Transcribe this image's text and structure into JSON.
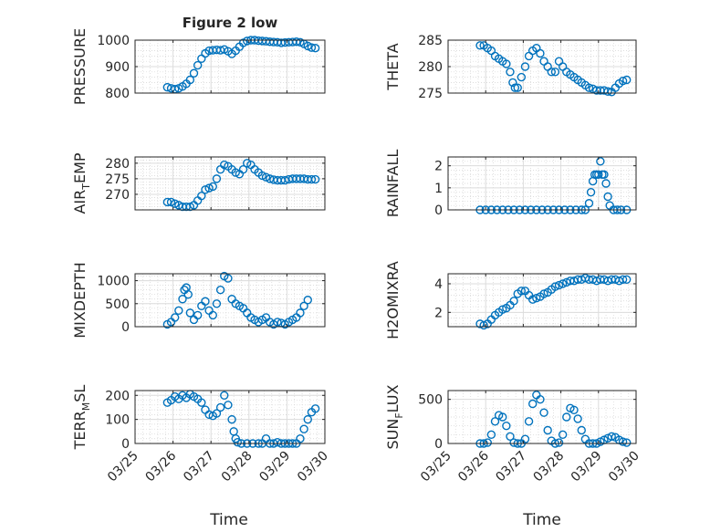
{
  "figure": {
    "title": "Figure 2 low",
    "xlabel": "Time",
    "xticklabels": [
      "03/25",
      "03/26",
      "03/27",
      "03/28",
      "03/29",
      "03/30"
    ],
    "marker_color": "#0072BD"
  },
  "chart_data": [
    {
      "type": "scatter",
      "marker": "circle-open",
      "ylabel": "PRESSURE",
      "ylim": [
        800,
        1000
      ],
      "yticks": [
        800,
        900,
        1000
      ],
      "grid": true,
      "minor_grid": true,
      "xlim": [
        "03/25",
        "03/30"
      ],
      "points": [
        [
          0.85,
          822
        ],
        [
          0.95,
          818
        ],
        [
          1.05,
          815
        ],
        [
          1.15,
          818
        ],
        [
          1.25,
          825
        ],
        [
          1.35,
          835
        ],
        [
          1.45,
          850
        ],
        [
          1.55,
          875
        ],
        [
          1.65,
          905
        ],
        [
          1.75,
          930
        ],
        [
          1.85,
          950
        ],
        [
          1.95,
          960
        ],
        [
          2.05,
          962
        ],
        [
          2.15,
          963
        ],
        [
          2.25,
          962
        ],
        [
          2.35,
          965
        ],
        [
          2.45,
          958
        ],
        [
          2.55,
          948
        ],
        [
          2.65,
          960
        ],
        [
          2.75,
          975
        ],
        [
          2.85,
          990
        ],
        [
          2.95,
          997
        ],
        [
          3.05,
          1000
        ],
        [
          3.15,
          1000
        ],
        [
          3.25,
          998
        ],
        [
          3.35,
          997
        ],
        [
          3.45,
          996
        ],
        [
          3.55,
          994
        ],
        [
          3.65,
          993
        ],
        [
          3.75,
          992
        ],
        [
          3.85,
          990
        ],
        [
          3.95,
          991
        ],
        [
          4.05,
          992
        ],
        [
          4.15,
          993
        ],
        [
          4.25,
          994
        ],
        [
          4.35,
          992
        ],
        [
          4.45,
          986
        ],
        [
          4.55,
          978
        ],
        [
          4.65,
          972
        ],
        [
          4.75,
          970
        ]
      ]
    },
    {
      "type": "scatter",
      "marker": "circle-open",
      "ylabel": "THETA",
      "ylim": [
        275,
        285
      ],
      "yticks": [
        275,
        280,
        285
      ],
      "grid": true,
      "minor_grid": true,
      "xlim": [
        "03/25",
        "03/30"
      ],
      "points": [
        [
          0.85,
          284
        ],
        [
          0.95,
          284
        ],
        [
          1.05,
          283.5
        ],
        [
          1.15,
          283
        ],
        [
          1.25,
          282
        ],
        [
          1.35,
          281.5
        ],
        [
          1.45,
          281
        ],
        [
          1.55,
          280.5
        ],
        [
          1.65,
          279
        ],
        [
          1.72,
          277
        ],
        [
          1.78,
          276
        ],
        [
          1.85,
          276
        ],
        [
          1.95,
          278
        ],
        [
          2.05,
          280
        ],
        [
          2.15,
          282
        ],
        [
          2.25,
          283
        ],
        [
          2.35,
          283.5
        ],
        [
          2.45,
          282.5
        ],
        [
          2.55,
          281
        ],
        [
          2.65,
          280
        ],
        [
          2.75,
          279
        ],
        [
          2.85,
          279
        ],
        [
          2.95,
          281
        ],
        [
          3.05,
          280
        ],
        [
          3.15,
          279
        ],
        [
          3.25,
          278.5
        ],
        [
          3.35,
          278
        ],
        [
          3.45,
          277.5
        ],
        [
          3.55,
          277
        ],
        [
          3.65,
          276.5
        ],
        [
          3.75,
          276
        ],
        [
          3.85,
          275.8
        ],
        [
          3.95,
          275.5
        ],
        [
          4.05,
          275.5
        ],
        [
          4.15,
          275.5
        ],
        [
          4.25,
          275.3
        ],
        [
          4.35,
          275.2
        ],
        [
          4.45,
          276
        ],
        [
          4.55,
          276.8
        ],
        [
          4.65,
          277.3
        ],
        [
          4.75,
          277.5
        ]
      ]
    },
    {
      "type": "scatter",
      "marker": "circle-open",
      "ylabel": "AIR_TEMP",
      "ylim": [
        265,
        282
      ],
      "yticks": [
        270,
        275,
        280
      ],
      "grid": true,
      "minor_grid": true,
      "xlim": [
        "03/25",
        "03/30"
      ],
      "points": [
        [
          0.85,
          267.5
        ],
        [
          0.95,
          267.5
        ],
        [
          1.05,
          267
        ],
        [
          1.15,
          266.5
        ],
        [
          1.25,
          266
        ],
        [
          1.35,
          266
        ],
        [
          1.45,
          266
        ],
        [
          1.55,
          266.5
        ],
        [
          1.65,
          268
        ],
        [
          1.75,
          269.5
        ],
        [
          1.85,
          271.5
        ],
        [
          1.95,
          272
        ],
        [
          2.05,
          272.5
        ],
        [
          2.15,
          275
        ],
        [
          2.25,
          278
        ],
        [
          2.35,
          279.5
        ],
        [
          2.45,
          279
        ],
        [
          2.55,
          278
        ],
        [
          2.65,
          277
        ],
        [
          2.75,
          276.5
        ],
        [
          2.85,
          278
        ],
        [
          2.95,
          280
        ],
        [
          3.05,
          279.5
        ],
        [
          3.15,
          278
        ],
        [
          3.25,
          277
        ],
        [
          3.35,
          276
        ],
        [
          3.45,
          275.5
        ],
        [
          3.55,
          275
        ],
        [
          3.65,
          274.7
        ],
        [
          3.75,
          274.5
        ],
        [
          3.85,
          274.5
        ],
        [
          3.95,
          274.5
        ],
        [
          4.05,
          274.8
        ],
        [
          4.15,
          275
        ],
        [
          4.25,
          275
        ],
        [
          4.35,
          275
        ],
        [
          4.45,
          275
        ],
        [
          4.55,
          274.8
        ],
        [
          4.65,
          274.8
        ],
        [
          4.75,
          274.8
        ]
      ]
    },
    {
      "type": "scatter",
      "marker": "circle-open",
      "ylabel": "RAINFALL",
      "ylim": [
        0,
        2.4
      ],
      "yticks": [
        0,
        1,
        2
      ],
      "grid": true,
      "minor_grid": true,
      "xlim": [
        "03/25",
        "03/30"
      ],
      "points": [
        [
          0.85,
          0
        ],
        [
          1.0,
          0
        ],
        [
          1.15,
          0
        ],
        [
          1.3,
          0
        ],
        [
          1.45,
          0
        ],
        [
          1.6,
          0
        ],
        [
          1.75,
          0
        ],
        [
          1.9,
          0
        ],
        [
          2.05,
          0
        ],
        [
          2.2,
          0
        ],
        [
          2.35,
          0
        ],
        [
          2.5,
          0
        ],
        [
          2.65,
          0
        ],
        [
          2.8,
          0
        ],
        [
          2.95,
          0
        ],
        [
          3.1,
          0
        ],
        [
          3.25,
          0
        ],
        [
          3.4,
          0
        ],
        [
          3.55,
          0
        ],
        [
          3.65,
          0
        ],
        [
          3.75,
          0.3
        ],
        [
          3.8,
          0.8
        ],
        [
          3.85,
          1.3
        ],
        [
          3.9,
          1.6
        ],
        [
          3.95,
          1.6
        ],
        [
          4.0,
          1.6
        ],
        [
          4.05,
          2.2
        ],
        [
          4.1,
          1.6
        ],
        [
          4.15,
          1.6
        ],
        [
          4.2,
          1.2
        ],
        [
          4.25,
          0.6
        ],
        [
          4.3,
          0.2
        ],
        [
          4.4,
          0
        ],
        [
          4.5,
          0
        ],
        [
          4.6,
          0
        ],
        [
          4.75,
          0
        ]
      ]
    },
    {
      "type": "scatter",
      "marker": "circle-open",
      "ylabel": "MIXDEPTH",
      "ylim": [
        0,
        1150
      ],
      "yticks": [
        0,
        500,
        1000
      ],
      "grid": true,
      "minor_grid": true,
      "xlim": [
        "03/25",
        "03/30"
      ],
      "points": [
        [
          0.85,
          50
        ],
        [
          0.95,
          100
        ],
        [
          1.05,
          200
        ],
        [
          1.15,
          350
        ],
        [
          1.25,
          600
        ],
        [
          1.3,
          800
        ],
        [
          1.35,
          850
        ],
        [
          1.4,
          700
        ],
        [
          1.45,
          300
        ],
        [
          1.55,
          150
        ],
        [
          1.65,
          250
        ],
        [
          1.75,
          450
        ],
        [
          1.85,
          550
        ],
        [
          1.95,
          350
        ],
        [
          2.05,
          250
        ],
        [
          2.15,
          500
        ],
        [
          2.25,
          800
        ],
        [
          2.35,
          1100
        ],
        [
          2.45,
          1050
        ],
        [
          2.55,
          600
        ],
        [
          2.65,
          500
        ],
        [
          2.75,
          450
        ],
        [
          2.85,
          400
        ],
        [
          2.95,
          300
        ],
        [
          3.05,
          200
        ],
        [
          3.15,
          150
        ],
        [
          3.25,
          100
        ],
        [
          3.35,
          150
        ],
        [
          3.45,
          200
        ],
        [
          3.55,
          100
        ],
        [
          3.65,
          50
        ],
        [
          3.75,
          100
        ],
        [
          3.85,
          80
        ],
        [
          3.95,
          50
        ],
        [
          4.05,
          100
        ],
        [
          4.15,
          150
        ],
        [
          4.25,
          200
        ],
        [
          4.35,
          300
        ],
        [
          4.45,
          450
        ],
        [
          4.55,
          580
        ]
      ]
    },
    {
      "type": "scatter",
      "marker": "circle-open",
      "ylabel": "H2OMIXRA",
      "ylim": [
        1,
        4.7
      ],
      "yticks": [
        2,
        4
      ],
      "grid": true,
      "minor_grid": true,
      "xlim": [
        "03/25",
        "03/30"
      ],
      "points": [
        [
          0.85,
          1.2
        ],
        [
          0.95,
          1.1
        ],
        [
          1.05,
          1.2
        ],
        [
          1.15,
          1.5
        ],
        [
          1.25,
          1.8
        ],
        [
          1.35,
          2.0
        ],
        [
          1.45,
          2.2
        ],
        [
          1.55,
          2.3
        ],
        [
          1.65,
          2.5
        ],
        [
          1.75,
          2.8
        ],
        [
          1.85,
          3.3
        ],
        [
          1.95,
          3.5
        ],
        [
          2.05,
          3.5
        ],
        [
          2.15,
          3.2
        ],
        [
          2.25,
          2.9
        ],
        [
          2.35,
          3.0
        ],
        [
          2.45,
          3.1
        ],
        [
          2.55,
          3.3
        ],
        [
          2.65,
          3.4
        ],
        [
          2.75,
          3.6
        ],
        [
          2.85,
          3.8
        ],
        [
          2.95,
          3.9
        ],
        [
          3.05,
          4.0
        ],
        [
          3.15,
          4.1
        ],
        [
          3.25,
          4.2
        ],
        [
          3.35,
          4.2
        ],
        [
          3.45,
          4.3
        ],
        [
          3.55,
          4.3
        ],
        [
          3.65,
          4.4
        ],
        [
          3.75,
          4.3
        ],
        [
          3.85,
          4.3
        ],
        [
          3.95,
          4.2
        ],
        [
          4.05,
          4.3
        ],
        [
          4.15,
          4.3
        ],
        [
          4.25,
          4.2
        ],
        [
          4.35,
          4.3
        ],
        [
          4.45,
          4.3
        ],
        [
          4.55,
          4.2
        ],
        [
          4.65,
          4.3
        ],
        [
          4.75,
          4.3
        ]
      ]
    },
    {
      "type": "scatter",
      "marker": "circle-open",
      "ylabel": "TERR_MSL",
      "ylim": [
        0,
        220
      ],
      "yticks": [
        0,
        100,
        200
      ],
      "grid": true,
      "minor_grid": true,
      "xlim": [
        "03/25",
        "03/30"
      ],
      "points": [
        [
          0.85,
          170
        ],
        [
          0.95,
          180
        ],
        [
          1.05,
          195
        ],
        [
          1.15,
          185
        ],
        [
          1.25,
          200
        ],
        [
          1.35,
          190
        ],
        [
          1.45,
          205
        ],
        [
          1.55,
          195
        ],
        [
          1.65,
          185
        ],
        [
          1.75,
          170
        ],
        [
          1.85,
          140
        ],
        [
          1.95,
          120
        ],
        [
          2.05,
          115
        ],
        [
          2.15,
          125
        ],
        [
          2.25,
          150
        ],
        [
          2.35,
          200
        ],
        [
          2.45,
          160
        ],
        [
          2.55,
          100
        ],
        [
          2.6,
          50
        ],
        [
          2.65,
          20
        ],
        [
          2.7,
          5
        ],
        [
          2.8,
          0
        ],
        [
          2.95,
          0
        ],
        [
          3.1,
          0
        ],
        [
          3.25,
          0
        ],
        [
          3.35,
          0
        ],
        [
          3.45,
          20
        ],
        [
          3.55,
          0
        ],
        [
          3.65,
          0
        ],
        [
          3.75,
          5
        ],
        [
          3.85,
          0
        ],
        [
          3.95,
          0
        ],
        [
          4.05,
          0
        ],
        [
          4.15,
          0
        ],
        [
          4.25,
          0
        ],
        [
          4.35,
          20
        ],
        [
          4.45,
          60
        ],
        [
          4.55,
          100
        ],
        [
          4.65,
          130
        ],
        [
          4.75,
          145
        ]
      ]
    },
    {
      "type": "scatter",
      "marker": "circle-open",
      "ylabel": "SUN_FLUX",
      "ylim": [
        0,
        600
      ],
      "yticks": [
        0,
        500
      ],
      "grid": true,
      "minor_grid": true,
      "xlim": [
        "03/25",
        "03/30"
      ],
      "points": [
        [
          0.85,
          0
        ],
        [
          0.95,
          0
        ],
        [
          1.05,
          10
        ],
        [
          1.15,
          100
        ],
        [
          1.25,
          250
        ],
        [
          1.35,
          320
        ],
        [
          1.45,
          300
        ],
        [
          1.55,
          200
        ],
        [
          1.65,
          80
        ],
        [
          1.75,
          10
        ],
        [
          1.85,
          0
        ],
        [
          1.95,
          0
        ],
        [
          2.05,
          50
        ],
        [
          2.15,
          250
        ],
        [
          2.25,
          450
        ],
        [
          2.35,
          550
        ],
        [
          2.45,
          500
        ],
        [
          2.55,
          350
        ],
        [
          2.65,
          150
        ],
        [
          2.75,
          30
        ],
        [
          2.85,
          0
        ],
        [
          2.95,
          10
        ],
        [
          3.05,
          100
        ],
        [
          3.15,
          300
        ],
        [
          3.25,
          400
        ],
        [
          3.35,
          380
        ],
        [
          3.45,
          280
        ],
        [
          3.55,
          150
        ],
        [
          3.65,
          50
        ],
        [
          3.75,
          0
        ],
        [
          3.85,
          0
        ],
        [
          3.95,
          0
        ],
        [
          4.05,
          20
        ],
        [
          4.15,
          40
        ],
        [
          4.25,
          60
        ],
        [
          4.35,
          80
        ],
        [
          4.45,
          70
        ],
        [
          4.55,
          40
        ],
        [
          4.65,
          20
        ],
        [
          4.75,
          10
        ]
      ]
    }
  ]
}
